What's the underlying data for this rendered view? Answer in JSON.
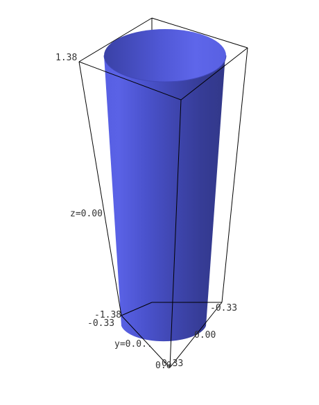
{
  "plot": {
    "type": "3d-surface",
    "surface": "cylinder",
    "surface_color": "#5058d8",
    "bounding_box": true,
    "background": "#ffffff"
  },
  "axes": {
    "z": {
      "max_label": "1.38",
      "center_label": "z=0.00",
      "min_label": "-1.38"
    },
    "y": {
      "min_label": "-0.33",
      "center_label": "y=0.0..",
      "max_label": "0.33"
    },
    "x": {
      "min_label": "-0.33",
      "center_label": "0.00",
      "max_label": "0.33"
    },
    "origin_overlap_label": "0.0"
  }
}
